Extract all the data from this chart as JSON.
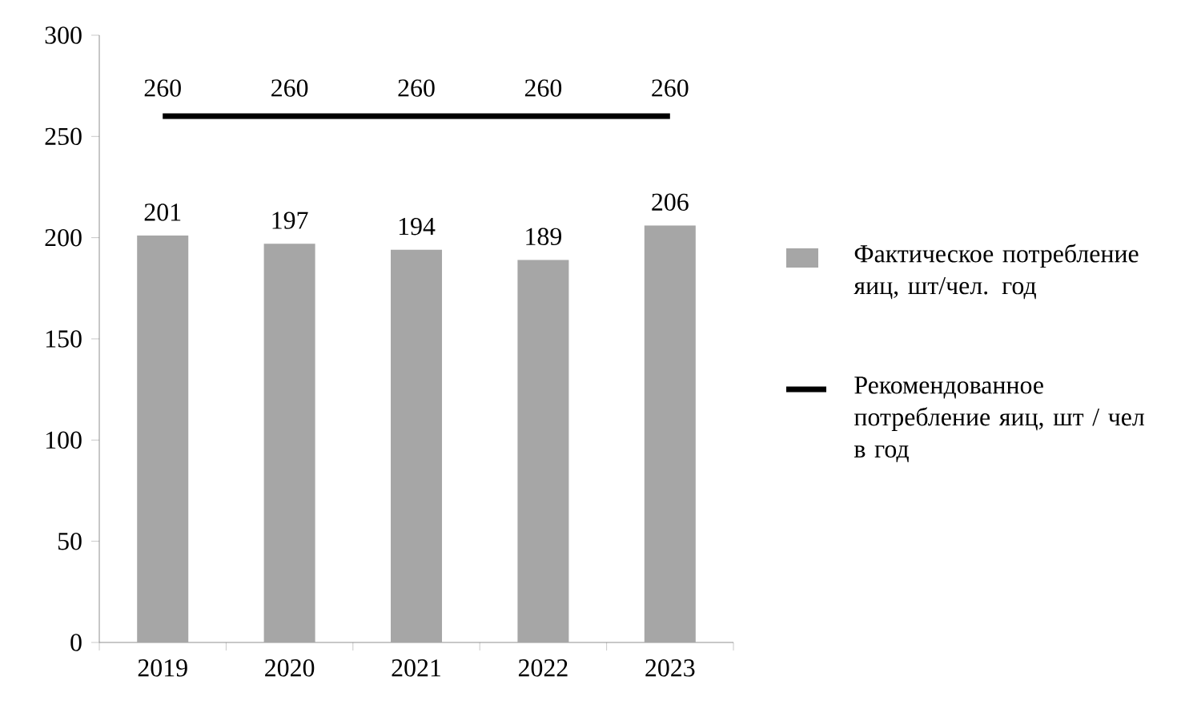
{
  "chart_data": {
    "type": "bar",
    "categories": [
      "2019",
      "2020",
      "2021",
      "2022",
      "2023"
    ],
    "series": [
      {
        "name": "Фактическое потребление яиц, шт/чел.  год",
        "color": "#a6a6a6",
        "values": [
          201,
          197,
          194,
          189,
          206
        ]
      },
      {
        "name": "Рекомендованное потребление яиц, шт / чел в год",
        "type": "line",
        "color": "#000000",
        "values": [
          260,
          260,
          260,
          260,
          260
        ]
      }
    ],
    "ylim": [
      0,
      300
    ],
    "yticks": [
      0,
      50,
      100,
      150,
      200,
      250,
      300
    ],
    "data_labels": true,
    "legend": "right",
    "grid": false
  }
}
